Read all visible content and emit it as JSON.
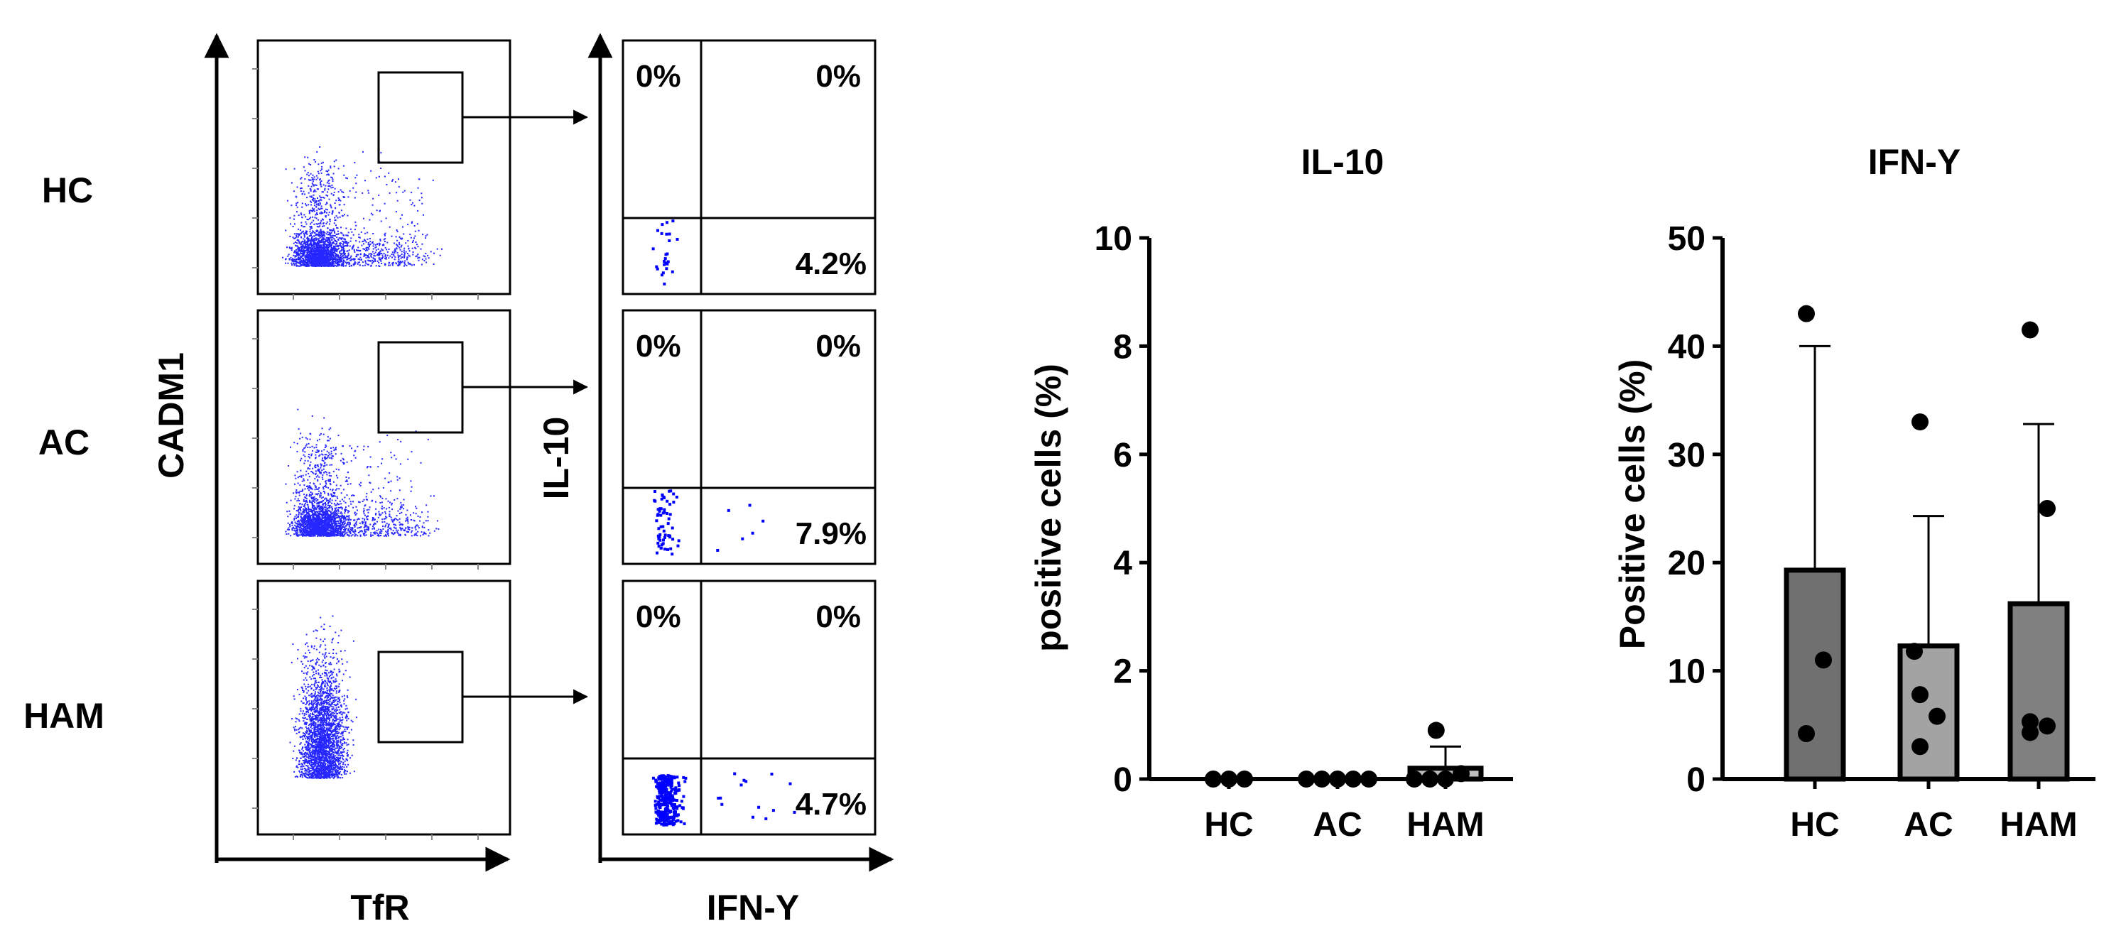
{
  "flow": {
    "row_labels": [
      "HC",
      "AC",
      "HAM"
    ],
    "left_xlabel": "TfR",
    "left_ylabel": "CADM1",
    "right_xlabel": "IFN-Y",
    "right_ylabel": "IL-10",
    "quadrant_values": [
      {
        "ul": "0%",
        "ur": "0%",
        "lr": "4.2%"
      },
      {
        "ul": "0%",
        "ur": "0%",
        "lr": "7.9%"
      },
      {
        "ul": "0%",
        "ur": "0%",
        "lr": "4.7%"
      }
    ],
    "dot_color": "#0000ff"
  },
  "chart_data": [
    {
      "type": "bar",
      "title": "IL-10",
      "ylabel": "positive cells (%)",
      "xlabel": "",
      "categories": [
        "HC",
        "AC",
        "HAM"
      ],
      "ylim": [
        0,
        10
      ],
      "yticks": [
        0,
        2,
        4,
        6,
        8,
        10
      ],
      "values": [
        0,
        0,
        0.2
      ],
      "error_upper": [
        0,
        0,
        0.6
      ],
      "points": [
        [
          0,
          0,
          0
        ],
        [
          0,
          0,
          0,
          0,
          0
        ],
        [
          0,
          0,
          0,
          0.1,
          0.9
        ]
      ],
      "bar_colors": [
        "#bebebe",
        "#bebebe",
        "#bebebe"
      ],
      "grid": false
    },
    {
      "type": "bar",
      "title": "IFN-Y",
      "ylabel": "Positive cells (%)",
      "xlabel": "",
      "categories": [
        "HC",
        "AC",
        "HAM"
      ],
      "ylim": [
        0,
        50
      ],
      "yticks": [
        0,
        10,
        20,
        30,
        40,
        50
      ],
      "values": [
        19.3,
        12.3,
        16.2
      ],
      "error_upper": [
        40.0,
        24.3,
        32.8
      ],
      "points": [
        [
          43.0,
          11.0,
          4.2
        ],
        [
          33.0,
          11.8,
          7.8,
          5.8,
          3.0
        ],
        [
          41.5,
          25.0,
          5.3,
          4.9,
          4.3
        ]
      ],
      "bar_colors": [
        "#707070",
        "#a3a3a3",
        "#808080"
      ],
      "grid": false
    }
  ]
}
